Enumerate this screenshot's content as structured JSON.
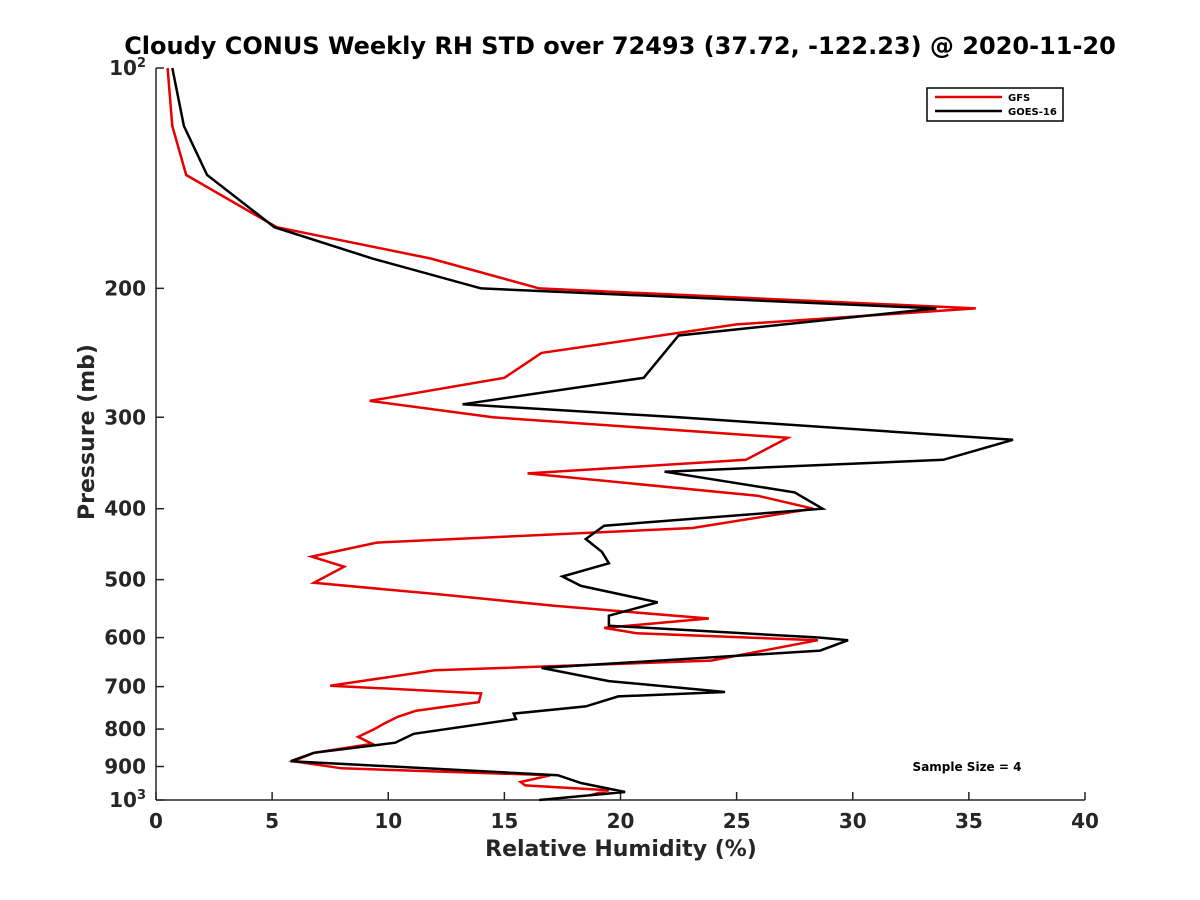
{
  "chart_data": {
    "type": "line",
    "title": "Cloudy CONUS Weekly RH STD over 72493 (37.72, -122.23) @ 2020-11-20",
    "xlabel": "Relative Humidity (%)",
    "ylabel": "Pressure (mb)",
    "xlim": [
      0,
      40
    ],
    "ylim": [
      100,
      1000
    ],
    "y_scale": "log",
    "y_reversed": true,
    "xticks": [
      "0",
      "5",
      "10",
      "15",
      "20",
      "25",
      "30",
      "35",
      "40"
    ],
    "yticks": [
      {
        "base": "10",
        "exp": "2",
        "value": 100
      },
      {
        "label": "200",
        "value": 200
      },
      {
        "label": "300",
        "value": 300
      },
      {
        "label": "400",
        "value": 400
      },
      {
        "label": "500",
        "value": 500
      },
      {
        "label": "600",
        "value": 600
      },
      {
        "label": "700",
        "value": 700
      },
      {
        "label": "800",
        "value": 800
      },
      {
        "label": "900",
        "value": 900
      },
      {
        "base": "10",
        "exp": "3",
        "value": 1000
      }
    ],
    "legend_position": "top-right",
    "annotation": "Sample Size = 4",
    "series": [
      {
        "name": "GFS",
        "color": "#e60000",
        "points": [
          [
            0.5,
            100
          ],
          [
            0.7,
            120
          ],
          [
            1.3,
            140
          ],
          [
            5.2,
            165
          ],
          [
            11.8,
            182
          ],
          [
            16.5,
            200
          ],
          [
            35.3,
            213
          ],
          [
            25.0,
            224
          ],
          [
            16.6,
            245
          ],
          [
            15.0,
            265
          ],
          [
            9.2,
            285
          ],
          [
            14.5,
            300
          ],
          [
            27.2,
            320
          ],
          [
            25.4,
            343
          ],
          [
            16.0,
            358
          ],
          [
            25.9,
            384
          ],
          [
            28.3,
            400
          ],
          [
            23.1,
            425
          ],
          [
            9.5,
            445
          ],
          [
            6.7,
            465
          ],
          [
            8.1,
            480
          ],
          [
            6.8,
            505
          ],
          [
            12.0,
            523
          ],
          [
            17.2,
            543
          ],
          [
            23.8,
            565
          ],
          [
            19.3,
            582
          ],
          [
            20.7,
            592
          ],
          [
            28.5,
            605
          ],
          [
            23.9,
            645
          ],
          [
            12.0,
            665
          ],
          [
            7.5,
            698
          ],
          [
            14.0,
            715
          ],
          [
            13.9,
            735
          ],
          [
            11.2,
            755
          ],
          [
            10.4,
            770
          ],
          [
            9.8,
            787
          ],
          [
            9.4,
            800
          ],
          [
            8.7,
            820
          ],
          [
            9.3,
            838
          ],
          [
            6.8,
            862
          ],
          [
            5.9,
            885
          ],
          [
            8.0,
            905
          ],
          [
            17.0,
            925
          ],
          [
            15.7,
            945
          ],
          [
            15.9,
            955
          ],
          [
            19.5,
            970
          ],
          [
            18.7,
            985
          ]
        ]
      },
      {
        "name": "GOES-16",
        "color": "#000000",
        "points": [
          [
            0.7,
            100
          ],
          [
            1.2,
            120
          ],
          [
            2.2,
            140
          ],
          [
            5.1,
            165
          ],
          [
            9.3,
            182
          ],
          [
            14.0,
            200
          ],
          [
            33.6,
            213
          ],
          [
            22.5,
            232
          ],
          [
            21.0,
            265
          ],
          [
            13.2,
            288
          ],
          [
            22.5,
            300
          ],
          [
            36.9,
            322
          ],
          [
            33.9,
            343
          ],
          [
            21.9,
            356
          ],
          [
            27.5,
            380
          ],
          [
            28.7,
            400
          ],
          [
            19.3,
            422
          ],
          [
            18.5,
            440
          ],
          [
            19.2,
            458
          ],
          [
            19.5,
            475
          ],
          [
            17.5,
            495
          ],
          [
            18.3,
            510
          ],
          [
            21.6,
            537
          ],
          [
            19.5,
            560
          ],
          [
            19.5,
            578
          ],
          [
            28.6,
            600
          ],
          [
            29.8,
            605
          ],
          [
            28.6,
            625
          ],
          [
            16.6,
            660
          ],
          [
            19.5,
            688
          ],
          [
            24.5,
            712
          ],
          [
            19.9,
            722
          ],
          [
            18.5,
            745
          ],
          [
            15.4,
            762
          ],
          [
            15.5,
            775
          ],
          [
            11.1,
            812
          ],
          [
            10.3,
            835
          ],
          [
            6.8,
            862
          ],
          [
            5.8,
            885
          ],
          [
            17.3,
            925
          ],
          [
            18.3,
            948
          ],
          [
            20.2,
            975
          ],
          [
            16.5,
            1000
          ]
        ]
      }
    ]
  }
}
